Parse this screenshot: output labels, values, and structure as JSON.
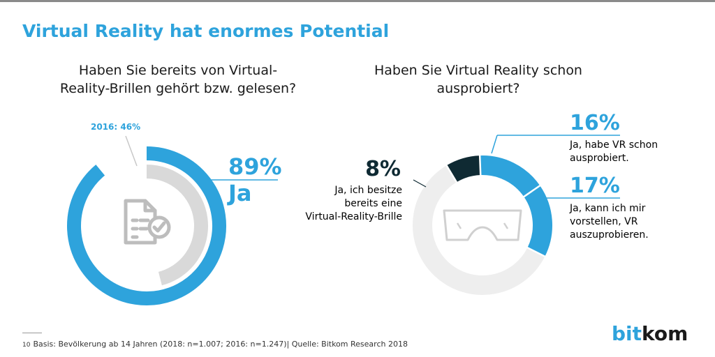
{
  "header": {
    "title": "Virtual Reality hat enormes Potential"
  },
  "chart_data": [
    {
      "type": "donut",
      "title": "Haben Sie bereits von Virtual-Reality-Brillen gehört bzw. gelesen?",
      "series": [
        {
          "name": "2018",
          "label": "Ja",
          "value": 89,
          "display": "89%",
          "color": "#2ea3dc"
        },
        {
          "name": "2016",
          "value": 46,
          "display": "2016: 46%",
          "color": "#d9d9d9"
        }
      ],
      "icon": "document-check-icon"
    },
    {
      "type": "donut",
      "title": "Haben Sie Virtual Reality schon ausprobiert?",
      "slices": [
        {
          "label_lines": [
            "Ja, ich besitze",
            "bereits eine",
            "Virtual-Reality-Brille"
          ],
          "value": 8,
          "display": "8%",
          "color": "#0f2a33"
        },
        {
          "label_lines": [
            "Ja, habe VR schon",
            "ausprobiert."
          ],
          "value": 16,
          "display": "16%",
          "color": "#2ea3dc"
        },
        {
          "label_lines": [
            "Ja, kann ich mir",
            "vorstellen, VR",
            "auszuprobieren."
          ],
          "value": 17,
          "display": "17%",
          "color": "#2ea3dc"
        },
        {
          "value": 59,
          "color": "#eeeeee"
        }
      ],
      "icon": "vr-headset-icon"
    }
  ],
  "footer": {
    "page_number": "10",
    "source": "Basis: Bevölkerung ab 14 Jahren (2018: n=1.007; 2016: n=1.247)| Quelle: Bitkom Research 2018"
  },
  "logo": {
    "part1": "bit",
    "part2": "kom"
  }
}
